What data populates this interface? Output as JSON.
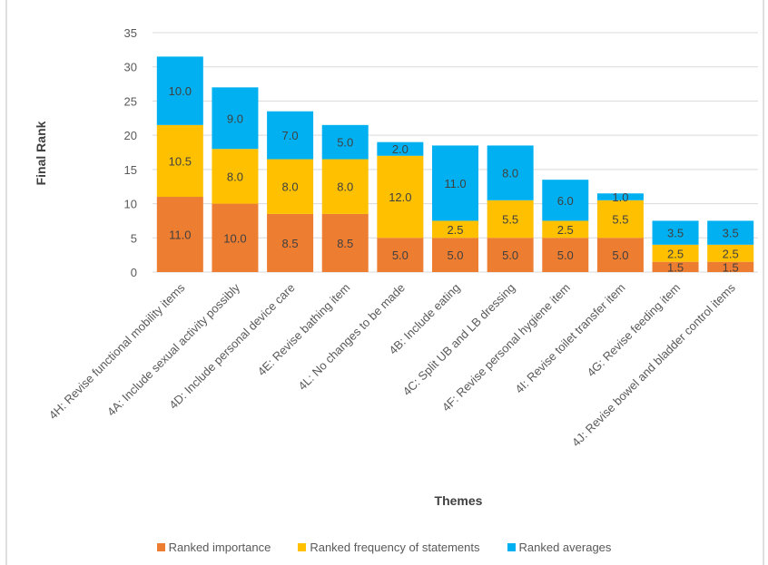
{
  "chart_data": {
    "type": "bar",
    "stacked": true,
    "title": "",
    "xlabel": "Themes",
    "ylabel": "Final Rank",
    "ylim": [
      0,
      35
    ],
    "yticks": [
      "0",
      "5",
      "10",
      "15",
      "20",
      "25",
      "30",
      "35"
    ],
    "grid": true,
    "legend_position": "bottom",
    "categories": [
      "4H: Revise functional mobility items",
      "4A: Include sexual activity possibly",
      "4D: Include personal device care",
      "4E: Revise bathing item",
      "4L: No changes to be made",
      "4B: Include eating",
      "4C: Split UB and LB dressing",
      "4F: Revise personal hygiene item",
      "4I: Revise toilet transfer item",
      "4G: Revise feeding item",
      "4J: Revise bowel and bladder control items"
    ],
    "series": [
      {
        "name": "Ranked importance",
        "color": "#ED7D31",
        "values": [
          11.0,
          10.0,
          8.5,
          8.5,
          5.0,
          5.0,
          5.0,
          5.0,
          5.0,
          1.5,
          1.5
        ],
        "labels": [
          "11.0",
          "10.0",
          "8.5",
          "8.5",
          "5.0",
          "5.0",
          "5.0",
          "5.0",
          "5.0",
          "1.5",
          "1.5"
        ]
      },
      {
        "name": "Ranked frequency of statements",
        "color": "#FFC000",
        "values": [
          10.5,
          8.0,
          8.0,
          8.0,
          12.0,
          2.5,
          5.5,
          2.5,
          5.5,
          2.5,
          2.5
        ],
        "labels": [
          "10.5",
          "8.0",
          "8.0",
          "8.0",
          "12.0",
          "2.5",
          "5.5",
          "2.5",
          "5.5",
          "2.5",
          "2.5"
        ]
      },
      {
        "name": "Ranked averages",
        "color": "#00B0F0",
        "values": [
          10.0,
          9.0,
          7.0,
          5.0,
          2.0,
          11.0,
          8.0,
          6.0,
          1.0,
          3.5,
          3.5
        ],
        "labels": [
          "10.0",
          "9.0",
          "7.0",
          "5.0",
          "2.0",
          "11.0",
          "8.0",
          "6.0",
          "1.0",
          "3.5",
          "3.5"
        ]
      }
    ]
  }
}
